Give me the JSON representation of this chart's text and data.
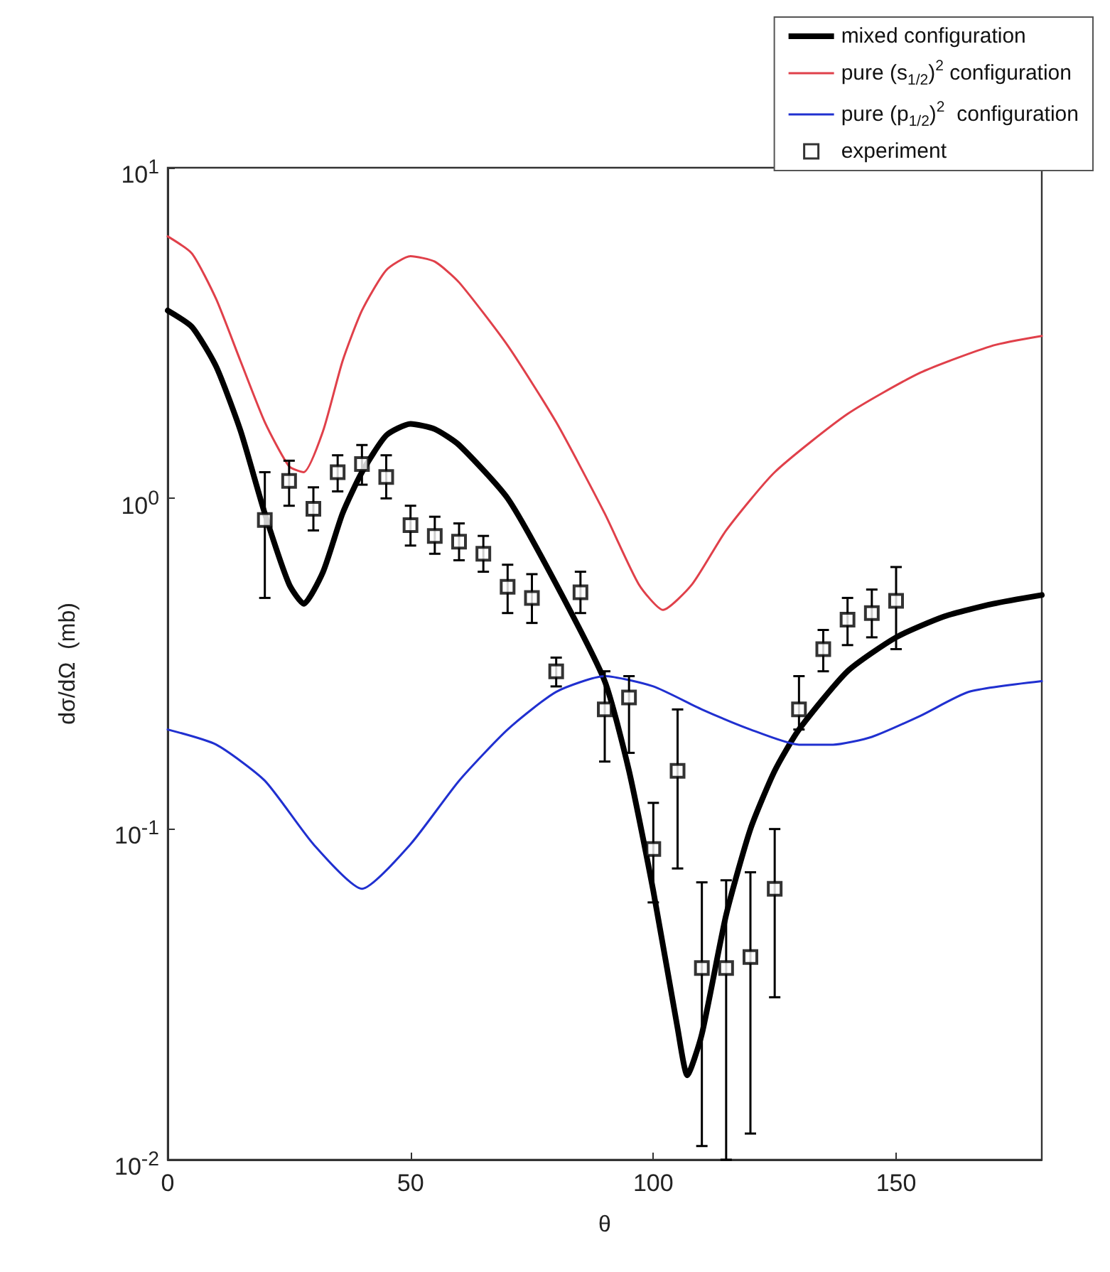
{
  "chart_data": {
    "type": "line",
    "xlabel": "θ",
    "ylabel": "dσ/dΩ  (mb)",
    "log": "y",
    "grid": false,
    "legend": "top right",
    "xlim": [
      0,
      180
    ],
    "xticks": [
      0,
      50,
      100,
      150
    ],
    "ylim": [
      0.01,
      10
    ],
    "yticks": [
      {
        "value": 0.01,
        "label": "10$^{-2}$"
      },
      {
        "value": 0.1,
        "label": "10$^{-1}$"
      },
      {
        "value": 1,
        "label": "10$^{0}$"
      },
      {
        "value": 10,
        "label": "10$^{1}$"
      }
    ],
    "series": [
      {
        "name": "mixed configuration",
        "color": "#000000",
        "x": [
          0,
          5,
          10,
          15,
          20,
          25,
          28,
          32,
          36,
          40,
          45,
          50,
          55,
          60,
          70,
          80,
          90,
          95,
          100,
          105,
          107,
          110,
          115,
          120,
          125,
          130,
          140,
          150,
          160,
          170,
          180
        ],
        "values": [
          3.7,
          3.3,
          2.5,
          1.6,
          0.9,
          0.55,
          0.48,
          0.6,
          0.9,
          1.2,
          1.55,
          1.68,
          1.62,
          1.45,
          1.0,
          0.55,
          0.28,
          0.15,
          0.065,
          0.025,
          0.018,
          0.024,
          0.055,
          0.1,
          0.15,
          0.2,
          0.3,
          0.38,
          0.44,
          0.48,
          0.51
        ]
      },
      {
        "name": "pure (s$_{1/2}$)$^{2}$ configuration",
        "color": "#e0404a",
        "x": [
          0,
          5,
          10,
          15,
          20,
          25,
          28,
          32,
          36,
          40,
          45,
          50,
          55,
          60,
          70,
          80,
          90,
          97,
          102,
          108,
          115,
          125,
          140,
          155,
          170,
          180
        ],
        "values": [
          6.2,
          5.5,
          4.0,
          2.6,
          1.7,
          1.25,
          1.2,
          1.6,
          2.6,
          3.7,
          4.9,
          5.4,
          5.2,
          4.5,
          2.9,
          1.7,
          0.9,
          0.55,
          0.46,
          0.55,
          0.8,
          1.2,
          1.8,
          2.4,
          2.9,
          3.1
        ]
      },
      {
        "name": "pure (p$_{1/2}$)$^{2}$  configuration",
        "color": "#2030d0",
        "x": [
          0,
          10,
          20,
          30,
          40,
          50,
          60,
          70,
          80,
          90,
          100,
          110,
          120,
          130,
          137,
          145,
          155,
          165,
          180
        ],
        "values": [
          0.2,
          0.18,
          0.14,
          0.09,
          0.066,
          0.09,
          0.14,
          0.2,
          0.26,
          0.29,
          0.27,
          0.23,
          0.2,
          0.18,
          0.18,
          0.19,
          0.22,
          0.26,
          0.28
        ]
      },
      {
        "name": "experiment",
        "type": "scatter",
        "marker": "square",
        "color": "#000000",
        "x": [
          20,
          25,
          30,
          35,
          40,
          45,
          50,
          55,
          60,
          65,
          70,
          75,
          80,
          85,
          90,
          95,
          100,
          105,
          110,
          115,
          120,
          125,
          130,
          135,
          140,
          145,
          150
        ],
        "values": [
          0.86,
          1.13,
          0.93,
          1.2,
          1.27,
          1.16,
          0.83,
          0.77,
          0.74,
          0.68,
          0.54,
          0.5,
          0.3,
          0.52,
          0.23,
          0.25,
          0.087,
          0.15,
          0.038,
          0.038,
          0.041,
          0.066,
          0.23,
          0.35,
          0.43,
          0.45,
          0.49
        ],
        "errors": [
          [
            0.5,
            1.2
          ],
          [
            0.95,
            1.3
          ],
          [
            0.8,
            1.08
          ],
          [
            1.05,
            1.35
          ],
          [
            1.1,
            1.45
          ],
          [
            1.0,
            1.35
          ],
          [
            0.72,
            0.95
          ],
          [
            0.68,
            0.88
          ],
          [
            0.65,
            0.84
          ],
          [
            0.6,
            0.77
          ],
          [
            0.45,
            0.63
          ],
          [
            0.42,
            0.59
          ],
          [
            0.27,
            0.33
          ],
          [
            0.45,
            0.6
          ],
          [
            0.16,
            0.3
          ],
          [
            0.17,
            0.29
          ],
          [
            0.06,
            0.12
          ],
          [
            0.076,
            0.23
          ],
          [
            0.011,
            0.069
          ],
          [
            0.01,
            0.07
          ],
          [
            0.012,
            0.074
          ],
          [
            0.031,
            0.1
          ],
          [
            0.2,
            0.29
          ],
          [
            0.3,
            0.4
          ],
          [
            0.36,
            0.5
          ],
          [
            0.38,
            0.53
          ],
          [
            0.35,
            0.62
          ]
        ]
      }
    ]
  }
}
